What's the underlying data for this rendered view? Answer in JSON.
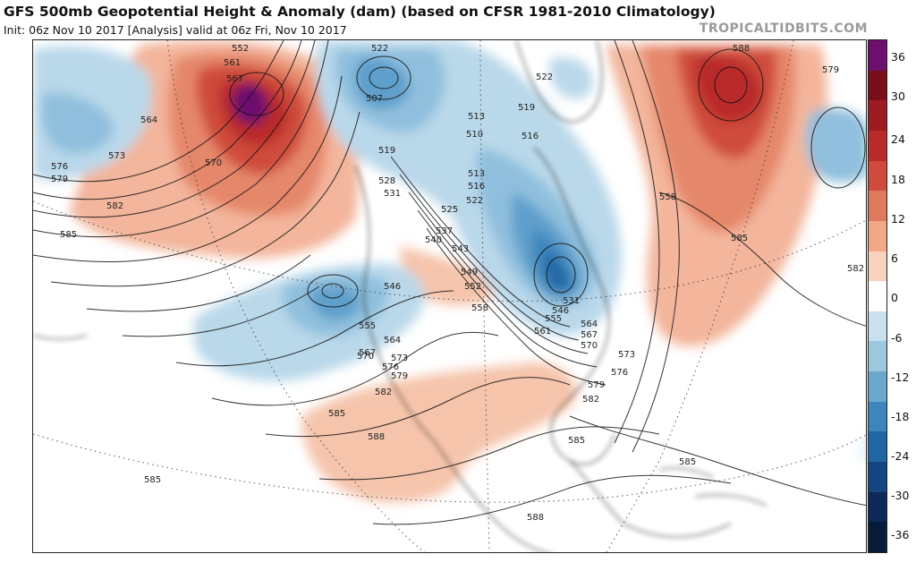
{
  "header": {
    "title": "GFS 500mb Geopotential Height & Anomaly (dam) (based on CFSR 1981-2010 Climatology)",
    "subtitle": "Init: 06z Nov 10 2017   [Analysis]   valid at 06z Fri, Nov 10 2017",
    "brand": "TROPICALTIDBITS.COM"
  },
  "colorbar": {
    "ticks": [
      "36",
      "30",
      "24",
      "18",
      "12",
      "6",
      "0",
      "-6",
      "-12",
      "-18",
      "-24",
      "-30",
      "-36"
    ],
    "colors": [
      "#6d0f6f",
      "#7a0f1a",
      "#9c1c22",
      "#b92a2a",
      "#cf4b3b",
      "#e07a5f",
      "#f0a888",
      "#f7d2bd",
      "#ffffff",
      "#c9e0ee",
      "#9cc7df",
      "#6aa8cd",
      "#3d86bb",
      "#2166a4",
      "#13467f",
      "#0b2a57",
      "#061a3a"
    ]
  },
  "contour_labels": [
    {
      "text": "552"
    },
    {
      "text": "561"
    },
    {
      "text": "567"
    },
    {
      "text": "564"
    },
    {
      "text": "570"
    },
    {
      "text": "573"
    },
    {
      "text": "576"
    },
    {
      "text": "579"
    },
    {
      "text": "582"
    },
    {
      "text": "585"
    },
    {
      "text": "507"
    },
    {
      "text": "522"
    },
    {
      "text": "522"
    },
    {
      "text": "519"
    },
    {
      "text": "513"
    },
    {
      "text": "510"
    },
    {
      "text": "516"
    },
    {
      "text": "519"
    },
    {
      "text": "513"
    },
    {
      "text": "516"
    },
    {
      "text": "522"
    },
    {
      "text": "525"
    },
    {
      "text": "528"
    },
    {
      "text": "531"
    },
    {
      "text": "537"
    },
    {
      "text": "540"
    },
    {
      "text": "543"
    },
    {
      "text": "549"
    },
    {
      "text": "552"
    },
    {
      "text": "546"
    },
    {
      "text": "555"
    },
    {
      "text": "558"
    },
    {
      "text": "561"
    },
    {
      "text": "564"
    },
    {
      "text": "567"
    },
    {
      "text": "570"
    },
    {
      "text": "573"
    },
    {
      "text": "576"
    },
    {
      "text": "579"
    },
    {
      "text": "582"
    },
    {
      "text": "585"
    },
    {
      "text": "588"
    },
    {
      "text": "585"
    },
    {
      "text": "585"
    },
    {
      "text": "588"
    },
    {
      "text": "585"
    },
    {
      "text": "588"
    },
    {
      "text": "579"
    },
    {
      "text": "558"
    },
    {
      "text": "585"
    },
    {
      "text": "582"
    },
    {
      "text": "531"
    },
    {
      "text": "546"
    },
    {
      "text": "555"
    },
    {
      "text": "564"
    },
    {
      "text": "567"
    },
    {
      "text": "570"
    },
    {
      "text": "573"
    },
    {
      "text": "576"
    },
    {
      "text": "579"
    },
    {
      "text": "582"
    }
  ]
}
